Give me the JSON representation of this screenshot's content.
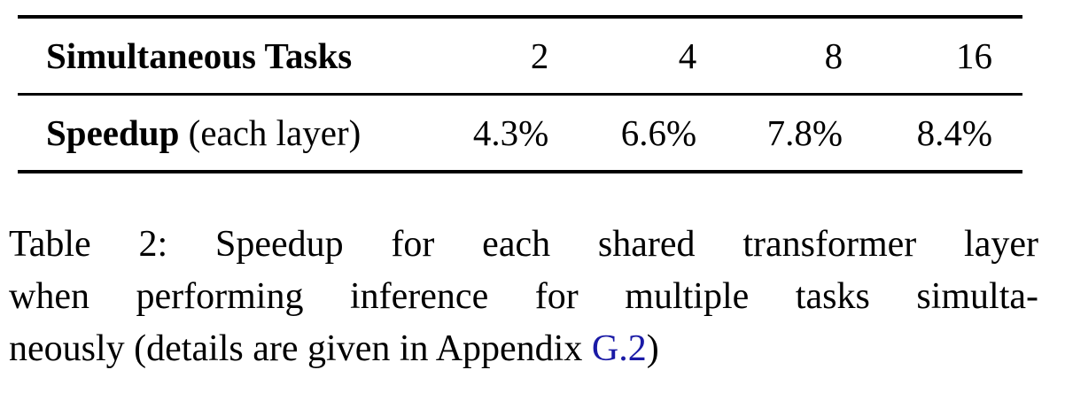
{
  "table": {
    "header": {
      "label": "Simultaneous Tasks",
      "columns": [
        "2",
        "4",
        "8",
        "16"
      ]
    },
    "rows": [
      {
        "label_bold": "Speedup",
        "label_rest": " (each layer)",
        "values": [
          "4.3%",
          "6.6%",
          "7.8%",
          "8.4%"
        ]
      }
    ]
  },
  "caption": {
    "line1": "Table 2:  Speedup for each shared transformer layer",
    "line2": "when performing inference for multiple tasks simulta-",
    "line3_prefix": "neously (details are given in Appendix ",
    "line3_ref": "G.2",
    "line3_suffix": ")",
    "ref_color": "#1a1aa6"
  }
}
